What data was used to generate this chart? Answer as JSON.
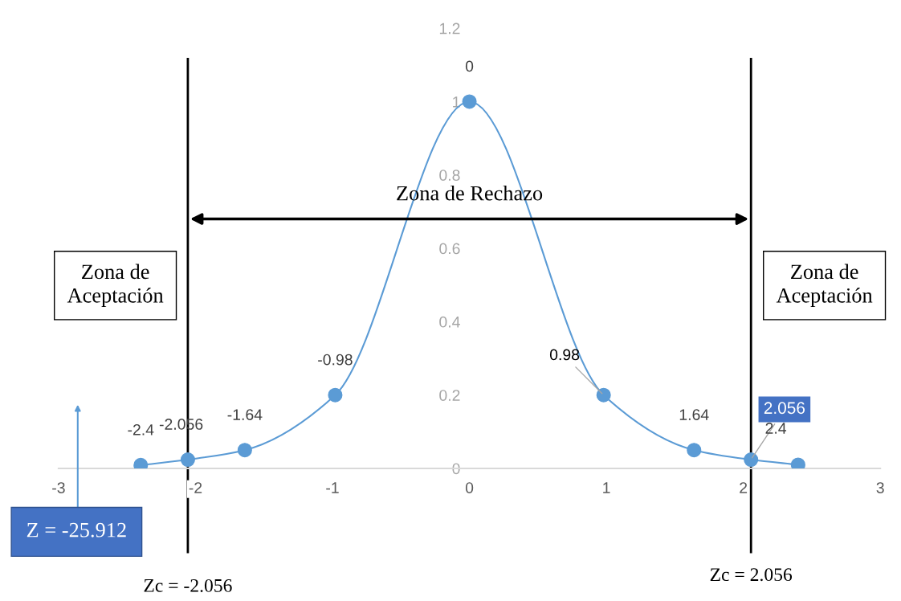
{
  "chart_data": {
    "type": "line",
    "x": [
      -2.4,
      -2.056,
      -1.64,
      -0.98,
      0,
      0.98,
      1.64,
      2.056,
      2.4
    ],
    "series": [
      {
        "color": "#5b9bd5",
        "values": [
          0.009,
          0.024,
          0.05,
          0.2,
          1.0,
          0.2,
          0.05,
          0.024,
          0.01
        ]
      }
    ],
    "xlim": [
      -3,
      3
    ],
    "xticks": [
      -3,
      -2,
      -1,
      0,
      1,
      2,
      3
    ],
    "ylim": [
      0,
      1.2
    ],
    "yticks": [
      0,
      0.2,
      0.4,
      0.6,
      0.8,
      1,
      1.2
    ],
    "marker": "circle",
    "line_style": "solid",
    "grid": false,
    "ref_lines": [
      {
        "axis": "x",
        "value": -2.056,
        "label": "Zc = -2.056",
        "color": "#000000",
        "line_style": "solid"
      },
      {
        "axis": "x",
        "value": 2.056,
        "label": "Zc = 2.056",
        "color": "#000000",
        "line_style": "solid"
      }
    ],
    "annotations": [
      {
        "text": "-2.4",
        "x": -2.4,
        "y": 0.009
      },
      {
        "text": "-2.056",
        "x": -2.056,
        "y": 0.024
      },
      {
        "text": "-1.64",
        "x": -1.64,
        "y": 0.05
      },
      {
        "text": "-0.98",
        "x": -0.98,
        "y": 0.2
      },
      {
        "text": "0",
        "x": 0,
        "y": 1.0
      },
      {
        "text": "0.98",
        "x": 0.98,
        "y": 0.2
      },
      {
        "text": "1.64",
        "x": 1.64,
        "y": 0.05
      },
      {
        "text": "2.056",
        "x": 2.056,
        "y": 0.024
      },
      {
        "text": "2.4",
        "x": 2.4,
        "y": 0.01
      },
      "Zona de Rechazo",
      "Zona de\nAceptación",
      "Zona de\nAceptación",
      "Z = -25.912"
    ]
  }
}
